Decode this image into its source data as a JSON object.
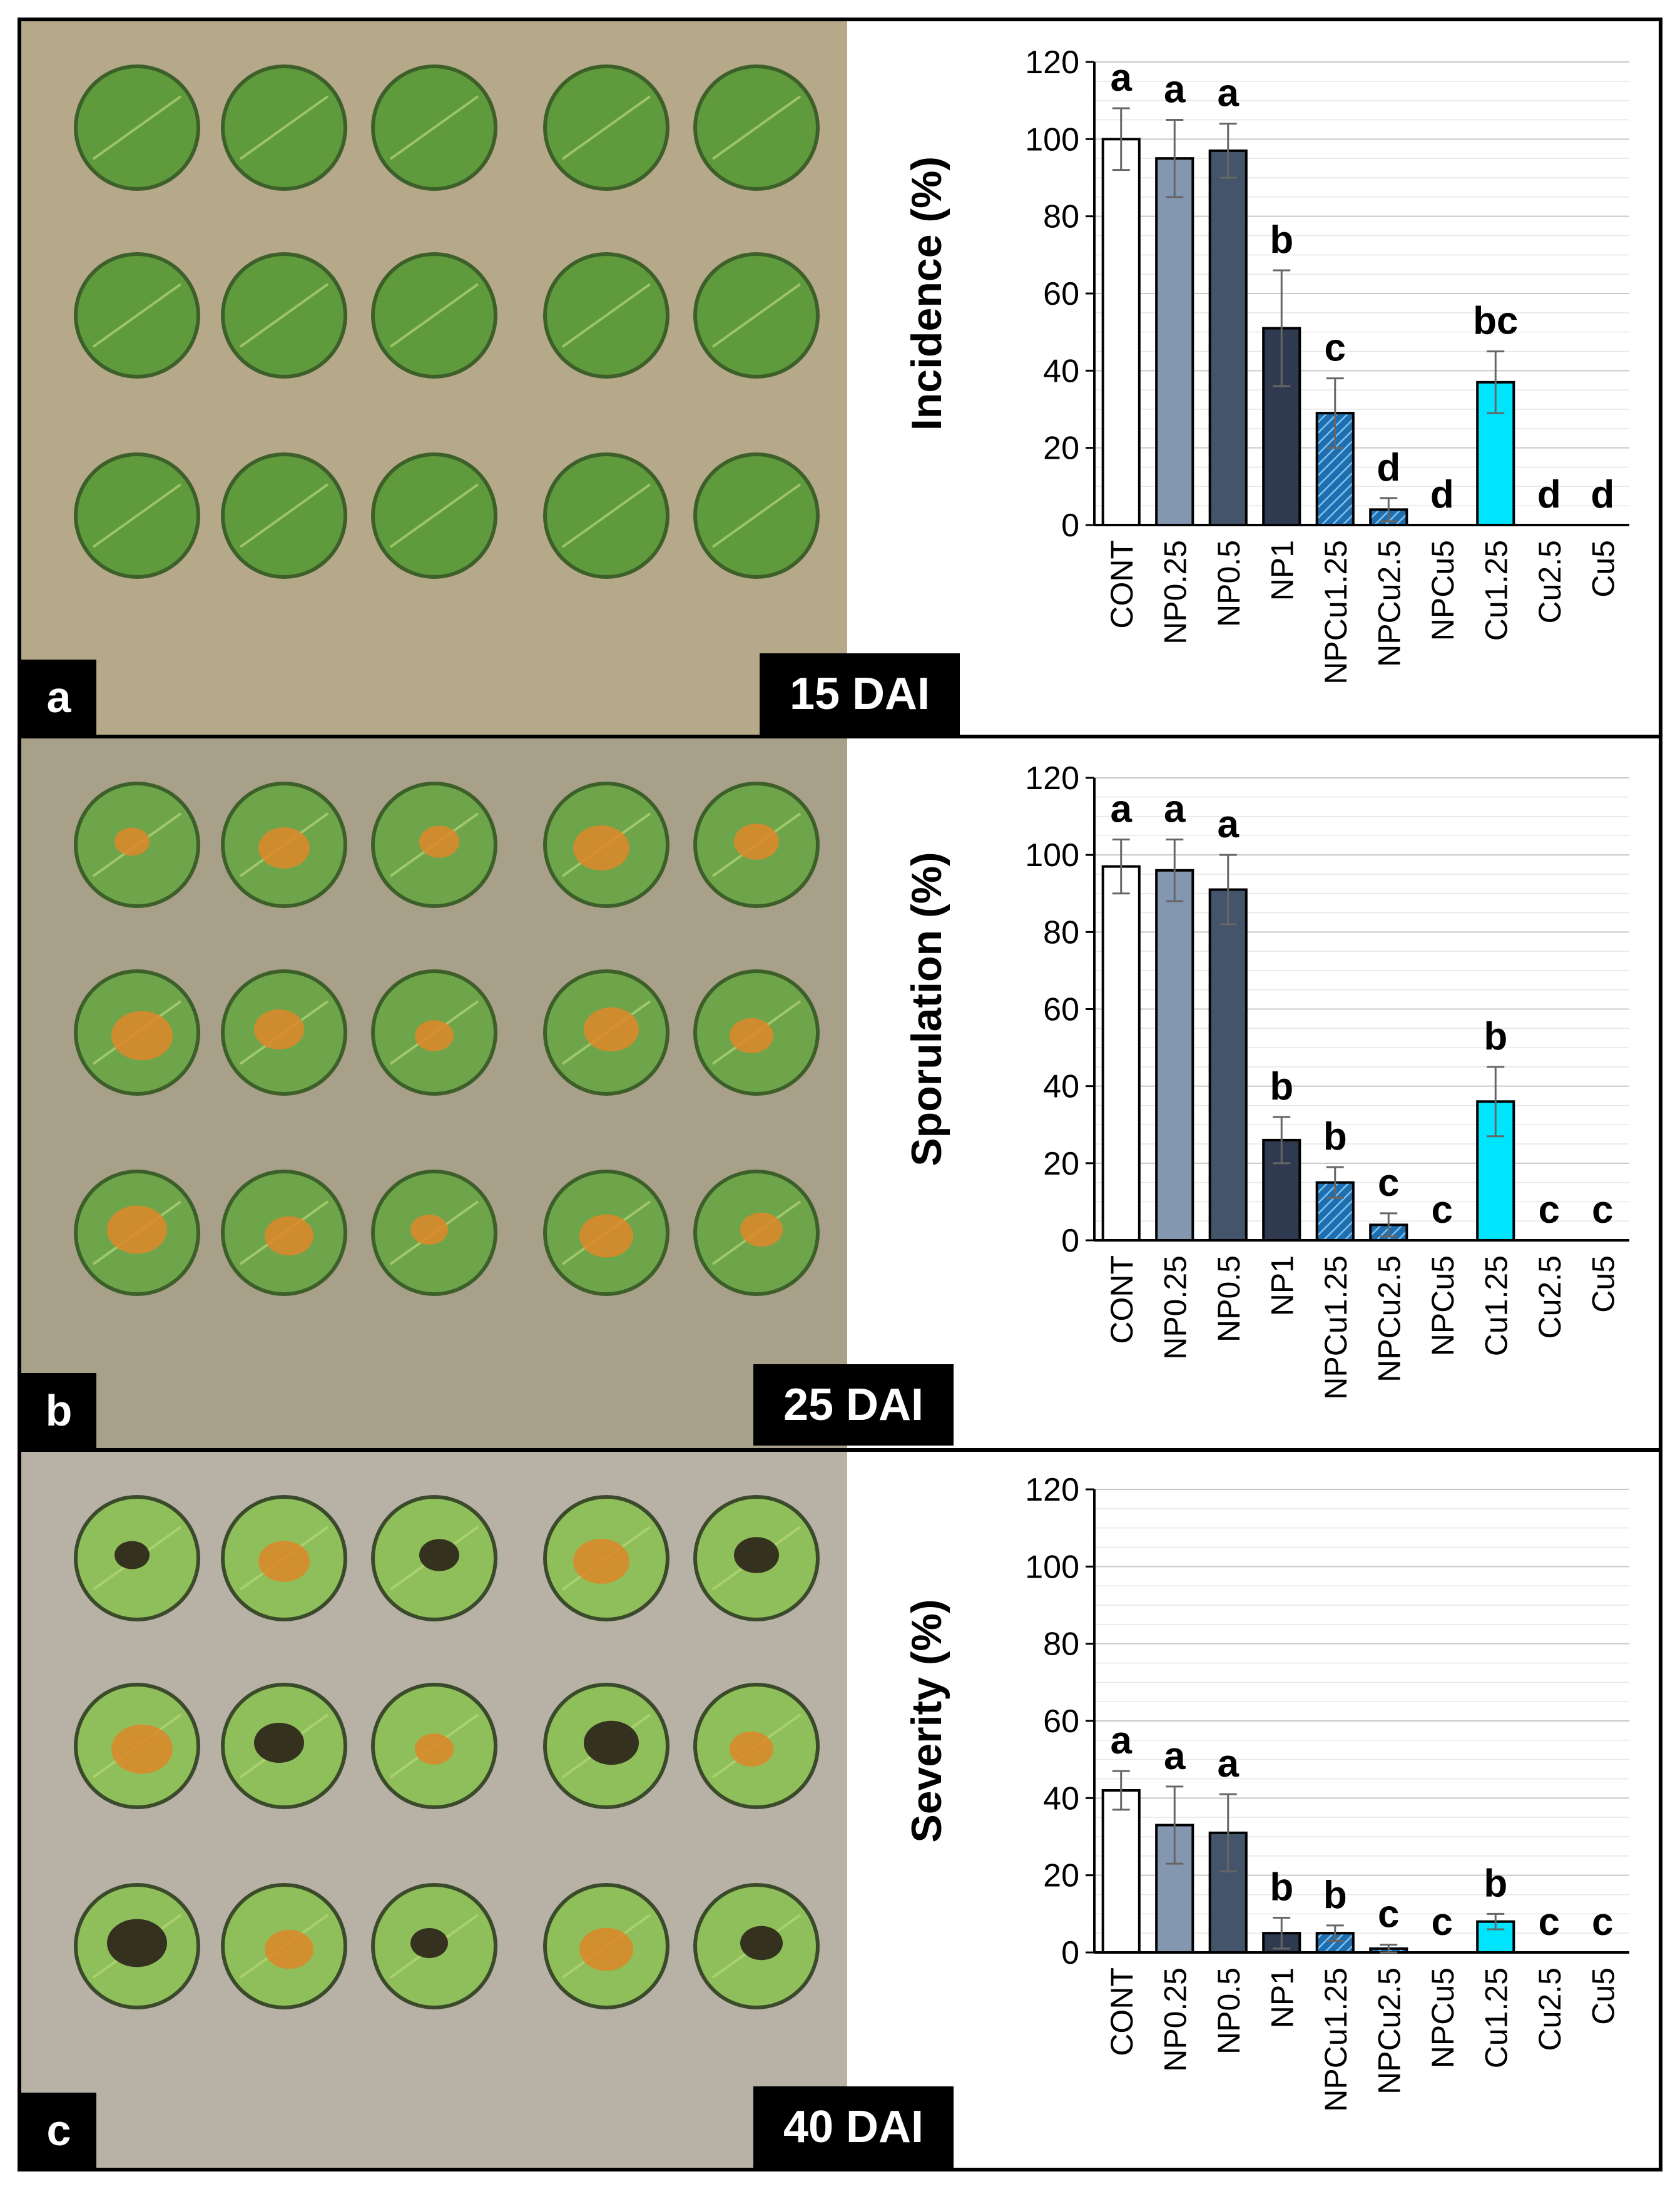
{
  "colors": {
    "CONT": "#ffffff",
    "NP0.25": "#8497b0",
    "NP0.5": "#44546a",
    "NP1": "#2f3a50",
    "NPCu1.25": "#2e86c1",
    "NPCu2.5": "#1f5f9a",
    "NPCu5": "#1f5f9a",
    "Cu1.25": "#00e5ff",
    "Cu2.5": "#00b0d0",
    "Cu5": "#00b0d0"
  },
  "panels": [
    {
      "letter": "a",
      "dai": "15 DAI",
      "chart_data": {
        "type": "bar",
        "title": "",
        "xlabel": "",
        "ylabel": "Incidence (%)",
        "ylim": [
          0,
          120
        ],
        "yticks": [
          "0",
          "20",
          "40",
          "60",
          "80",
          "100",
          "120"
        ],
        "categories": [
          "CONT",
          "NP0.25",
          "NP0.5",
          "NP1",
          "NPCu1.25",
          "NPCu2.5",
          "NPCu5",
          "Cu1.25",
          "Cu2.5",
          "Cu5"
        ],
        "values": [
          100,
          95,
          97,
          51,
          29,
          4,
          0,
          37,
          0,
          0
        ],
        "errors": [
          8,
          10,
          7,
          15,
          9,
          3,
          0,
          8,
          0,
          0
        ],
        "letters": [
          "a",
          "a",
          "a",
          "b",
          "c",
          "d",
          "d",
          "bc",
          "d",
          "d"
        ]
      }
    },
    {
      "letter": "b",
      "dai": "25 DAI",
      "chart_data": {
        "type": "bar",
        "title": "",
        "xlabel": "",
        "ylabel": "Sporulation (%)",
        "ylim": [
          0,
          120
        ],
        "yticks": [
          "0",
          "20",
          "40",
          "60",
          "80",
          "100",
          "120"
        ],
        "categories": [
          "CONT",
          "NP0.25",
          "NP0.5",
          "NP1",
          "NPCu1.25",
          "NPCu2.5",
          "NPCu5",
          "Cu1.25",
          "Cu2.5",
          "Cu5"
        ],
        "values": [
          97,
          96,
          91,
          26,
          15,
          4,
          0,
          36,
          0,
          0
        ],
        "errors": [
          7,
          8,
          9,
          6,
          4,
          3,
          0,
          9,
          0,
          0
        ],
        "letters": [
          "a",
          "a",
          "a",
          "b",
          "b",
          "c",
          "c",
          "b",
          "c",
          "c"
        ]
      }
    },
    {
      "letter": "c",
      "dai": "40 DAI",
      "chart_data": {
        "type": "bar",
        "title": "",
        "xlabel": "",
        "ylabel": "Severity (%)",
        "ylim": [
          0,
          120
        ],
        "yticks": [
          "0",
          "20",
          "40",
          "60",
          "80",
          "100",
          "120"
        ],
        "categories": [
          "CONT",
          "NP0.25",
          "NP0.5",
          "NP1",
          "NPCu1.25",
          "NPCu2.5",
          "NPCu5",
          "Cu1.25",
          "Cu2.5",
          "Cu5"
        ],
        "values": [
          42,
          33,
          31,
          5,
          5,
          1,
          0,
          8,
          0,
          0
        ],
        "errors": [
          5,
          10,
          10,
          4,
          2,
          1,
          0,
          2,
          0,
          0
        ],
        "letters": [
          "a",
          "a",
          "a",
          "b",
          "b",
          "c",
          "c",
          "b",
          "c",
          "c"
        ]
      }
    }
  ]
}
